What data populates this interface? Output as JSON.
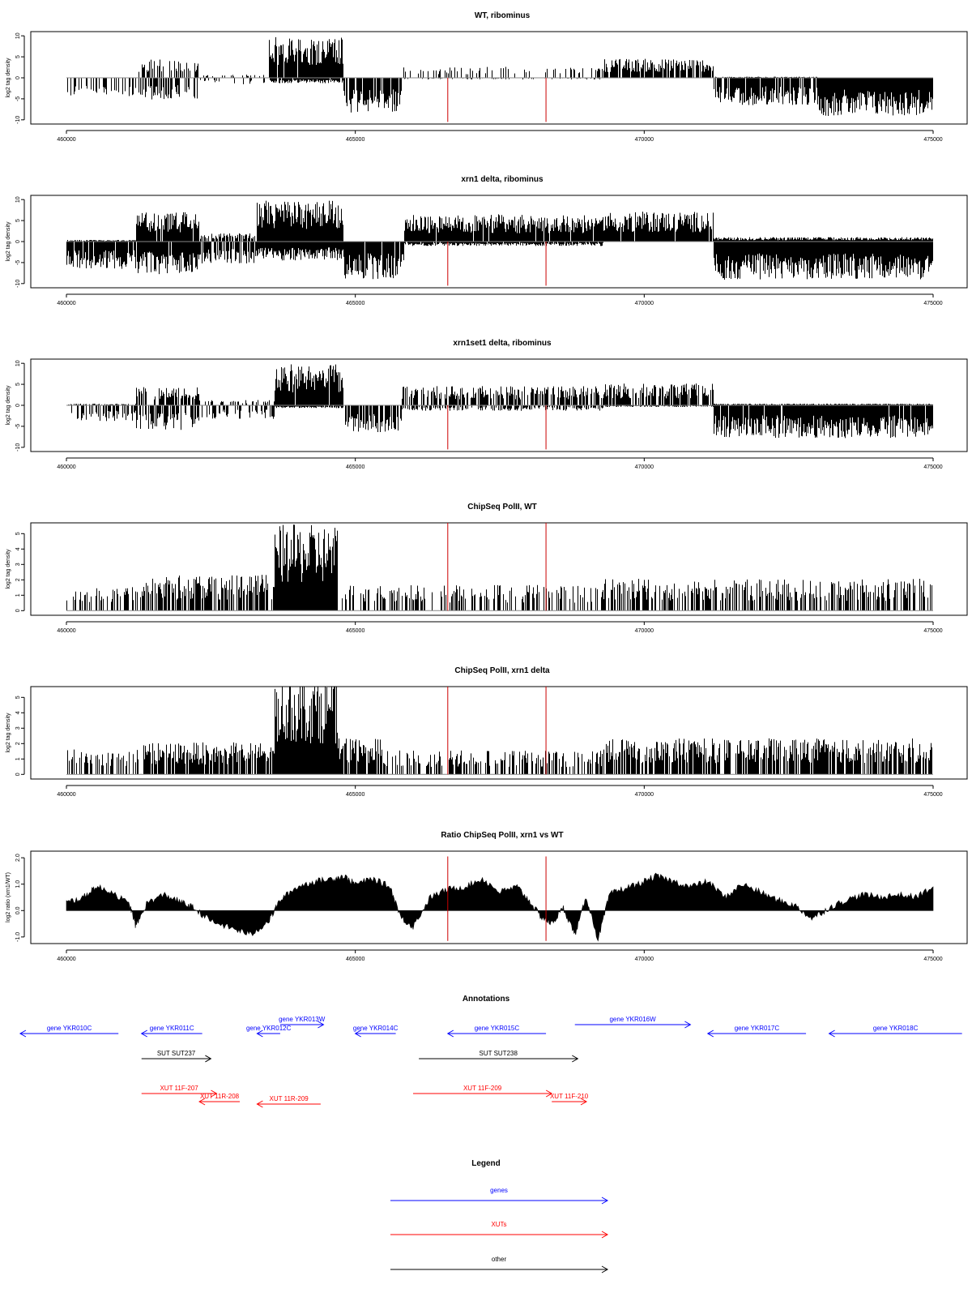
{
  "chart_data": [
    {
      "type": "bar",
      "title": "WT, ribominus",
      "ylabel": "log2 tag density",
      "xlim": [
        460000,
        475000
      ],
      "ylim": [
        -11,
        11
      ],
      "yticks": [
        10,
        5,
        0,
        -5,
        -10
      ],
      "xticks": [
        460000,
        465000,
        470000,
        475000
      ],
      "xtick_labels": [
        "460000",
        "465000",
        "470000",
        "475000"
      ],
      "vlines": [
        466600,
        468300
      ],
      "vline_range": [
        -10.5,
        0
      ],
      "segments": [
        {
          "from": 460000,
          "to": 461200,
          "plus": 0.0,
          "minus": -3.5,
          "density": 0.35
        },
        {
          "from": 461200,
          "to": 462300,
          "plus": 3.5,
          "minus": -4.0,
          "density": 0.55
        },
        {
          "from": 462300,
          "to": 463500,
          "plus": 0.6,
          "minus": -1.2,
          "density": 0.15
        },
        {
          "from": 463500,
          "to": 464800,
          "plus": 7.5,
          "minus": -1.0,
          "density": 0.95
        },
        {
          "from": 464800,
          "to": 465800,
          "plus": 0.0,
          "minus": -6.5,
          "density": 0.85
        },
        {
          "from": 465800,
          "to": 469300,
          "plus": 2.0,
          "minus": -0.3,
          "density": 0.2
        },
        {
          "from": 469300,
          "to": 471200,
          "plus": 3.5,
          "minus": 0.0,
          "density": 0.8
        },
        {
          "from": 471200,
          "to": 473000,
          "plus": 0.2,
          "minus": -5.0,
          "density": 0.8
        },
        {
          "from": 473000,
          "to": 475000,
          "plus": 0.0,
          "minus": -7.0,
          "density": 1.0
        }
      ]
    },
    {
      "type": "bar",
      "title": "xrn1 delta, ribominus",
      "ylabel": "log2 tag density",
      "xlim": [
        460000,
        475000
      ],
      "ylim": [
        -11,
        11
      ],
      "yticks": [
        10,
        5,
        0,
        -5,
        -10
      ],
      "xticks": [
        460000,
        465000,
        470000,
        475000
      ],
      "xtick_labels": [
        "460000",
        "465000",
        "470000",
        "475000"
      ],
      "vlines": [
        466600,
        468300
      ],
      "vline_range": [
        -10.5,
        0
      ],
      "segments": [
        {
          "from": 460000,
          "to": 461200,
          "plus": 0.3,
          "minus": -5.0,
          "density": 0.9
        },
        {
          "from": 461200,
          "to": 462300,
          "plus": 5.5,
          "minus": -6.0,
          "density": 0.95
        },
        {
          "from": 462300,
          "to": 463300,
          "plus": 1.5,
          "minus": -4.0,
          "density": 0.7
        },
        {
          "from": 463300,
          "to": 464800,
          "plus": 7.5,
          "minus": -3.5,
          "density": 1.0
        },
        {
          "from": 464800,
          "to": 465850,
          "plus": 0.0,
          "minus": -7.0,
          "density": 0.95
        },
        {
          "from": 465850,
          "to": 469300,
          "plus": 5.0,
          "minus": -0.8,
          "density": 0.95
        },
        {
          "from": 469300,
          "to": 471200,
          "plus": 5.5,
          "minus": 0.0,
          "density": 0.95
        },
        {
          "from": 471200,
          "to": 475000,
          "plus": 0.8,
          "minus": -7.0,
          "density": 1.0
        }
      ]
    },
    {
      "type": "bar",
      "title": "xrn1set1 delta, ribominus",
      "ylabel": "log2 tag density",
      "xlim": [
        460000,
        475000
      ],
      "ylim": [
        -11,
        11
      ],
      "yticks": [
        10,
        5,
        0,
        -5,
        -10
      ],
      "xticks": [
        460000,
        465000,
        470000,
        475000
      ],
      "xtick_labels": [
        "460000",
        "465000",
        "470000",
        "475000"
      ],
      "vlines": [
        466600,
        468300
      ],
      "vline_range": [
        -10.5,
        0
      ],
      "segments": [
        {
          "from": 460000,
          "to": 461200,
          "plus": 0.3,
          "minus": -3.0,
          "density": 0.45
        },
        {
          "from": 461200,
          "to": 462300,
          "plus": 3.5,
          "minus": -4.5,
          "density": 0.6
        },
        {
          "from": 462300,
          "to": 463600,
          "plus": 1.0,
          "minus": -2.5,
          "density": 0.35
        },
        {
          "from": 463600,
          "to": 464800,
          "plus": 7.5,
          "minus": -0.5,
          "density": 0.95
        },
        {
          "from": 464800,
          "to": 465800,
          "plus": 0.0,
          "minus": -5.0,
          "density": 0.75
        },
        {
          "from": 465800,
          "to": 469300,
          "plus": 3.5,
          "minus": -1.0,
          "density": 0.6
        },
        {
          "from": 469300,
          "to": 471200,
          "plus": 4.0,
          "minus": -0.3,
          "density": 0.75
        },
        {
          "from": 471200,
          "to": 475000,
          "plus": 0.3,
          "minus": -6.0,
          "density": 0.95
        }
      ]
    },
    {
      "type": "bar",
      "title": "ChipSeq PolII, WT",
      "ylabel": "log2 tag density",
      "xlim": [
        460000,
        475000
      ],
      "ylim": [
        -0.3,
        5.7
      ],
      "yticks": [
        0,
        1,
        2,
        3,
        4,
        5
      ],
      "xticks": [
        460000,
        465000,
        470000,
        475000
      ],
      "xtick_labels": [
        "460000",
        "465000",
        "470000",
        "475000"
      ],
      "vlines": [
        466600,
        468300
      ],
      "vline_range": [
        0,
        5.7
      ],
      "segments": [
        {
          "from": 460000,
          "to": 461300,
          "plus": 1.2,
          "minus": 0,
          "density": 0.3
        },
        {
          "from": 461300,
          "to": 463600,
          "plus": 1.8,
          "minus": 0,
          "density": 0.7
        },
        {
          "from": 463600,
          "to": 464700,
          "plus": 4.3,
          "minus": 0,
          "density": 1.0
        },
        {
          "from": 464700,
          "to": 469300,
          "plus": 1.3,
          "minus": 0,
          "density": 0.35
        },
        {
          "from": 469300,
          "to": 475000,
          "plus": 1.6,
          "minus": 0,
          "density": 0.55
        }
      ]
    },
    {
      "type": "bar",
      "title": "ChipSeq PolII, xrn1 delta",
      "ylabel": "log2 tag density",
      "xlim": [
        460000,
        475000
      ],
      "ylim": [
        -0.3,
        5.7
      ],
      "yticks": [
        0,
        1,
        2,
        3,
        4,
        5
      ],
      "xticks": [
        460000,
        465000,
        470000,
        475000
      ],
      "xtick_labels": [
        "460000",
        "465000",
        "470000",
        "475000"
      ],
      "vlines": [
        466600,
        468300
      ],
      "vline_range": [
        0,
        5.7
      ],
      "segments": [
        {
          "from": 460000,
          "to": 461300,
          "plus": 1.3,
          "minus": 0,
          "density": 0.45
        },
        {
          "from": 461300,
          "to": 463600,
          "plus": 1.6,
          "minus": 0,
          "density": 0.8
        },
        {
          "from": 463600,
          "to": 464700,
          "plus": 5.0,
          "minus": 0,
          "density": 1.0
        },
        {
          "from": 464700,
          "to": 465500,
          "plus": 1.8,
          "minus": 0,
          "density": 0.9
        },
        {
          "from": 465500,
          "to": 469300,
          "plus": 1.2,
          "minus": 0,
          "density": 0.5
        },
        {
          "from": 469300,
          "to": 475000,
          "plus": 1.8,
          "minus": 0,
          "density": 0.75
        }
      ]
    },
    {
      "type": "area",
      "title": "Ratio ChipSeq PolII, xrn1 vs WT",
      "ylabel": "log2 ratio (xrn1/WT)",
      "xlim": [
        460000,
        475000
      ],
      "ylim": [
        -1.25,
        2.25
      ],
      "yticks": [
        2.0,
        1.0,
        0.0,
        -1.0
      ],
      "ytick_labels": [
        "2.0",
        "1.0",
        "0.0",
        "-1.0"
      ],
      "xticks": [
        460000,
        465000,
        470000,
        475000
      ],
      "xtick_labels": [
        "460000",
        "465000",
        "470000",
        "475000"
      ],
      "vlines": [
        466600,
        468300
      ],
      "vline_range": [
        -1.15,
        2.05
      ],
      "x": [
        460000,
        460300,
        460500,
        460800,
        461100,
        461200,
        461400,
        461700,
        462000,
        462200,
        462500,
        462900,
        463200,
        463500,
        463700,
        464000,
        464300,
        464600,
        464800,
        465000,
        465300,
        465600,
        465800,
        466000,
        466300,
        466600,
        466900,
        467200,
        467500,
        467800,
        468000,
        468200,
        468400,
        468600,
        468800,
        469000,
        469200,
        469400,
        469600,
        469900,
        470200,
        470500,
        470800,
        471100,
        471400,
        471700,
        472000,
        472300,
        472600,
        472900,
        473200,
        473500,
        473800,
        474100,
        474400,
        474700,
        475000
      ],
      "y": [
        0.3,
        0.5,
        0.9,
        0.7,
        0.2,
        -0.6,
        0.3,
        0.6,
        0.3,
        0.1,
        -0.4,
        -0.7,
        -0.9,
        -0.4,
        0.4,
        0.9,
        1.1,
        1.2,
        1.3,
        1.0,
        1.2,
        0.9,
        -0.3,
        -0.6,
        0.5,
        0.8,
        0.9,
        1.2,
        0.7,
        0.9,
        0.4,
        -0.2,
        -0.5,
        0.1,
        -0.9,
        0.5,
        -1.1,
        0.6,
        0.8,
        1.0,
        1.3,
        1.1,
        0.9,
        1.1,
        0.5,
        1.0,
        0.7,
        0.4,
        0.2,
        -0.3,
        0.1,
        0.4,
        0.6,
        0.5,
        0.6,
        0.5,
        0.9
      ]
    }
  ],
  "annotations": {
    "title": "Annotations",
    "items": [
      {
        "label": "gene YKR010C",
        "color": "#0000ff",
        "from": 459200,
        "to": 460900,
        "dir": "left",
        "lane": 1
      },
      {
        "label": "gene YKR011C",
        "color": "#0000ff",
        "from": 461300,
        "to": 462350,
        "dir": "left",
        "lane": 1
      },
      {
        "label": "gene YKR012C",
        "color": "#0000ff",
        "from": 463300,
        "to": 463700,
        "dir": "left",
        "lane": 1
      },
      {
        "label": "gene YKR013W",
        "color": "#0000ff",
        "from": 463700,
        "to": 464450,
        "dir": "right",
        "lane": 0
      },
      {
        "label": "gene YKR014C",
        "color": "#0000ff",
        "from": 465000,
        "to": 465700,
        "dir": "left",
        "lane": 1
      },
      {
        "label": "gene YKR015C",
        "color": "#0000ff",
        "from": 466600,
        "to": 468300,
        "dir": "left",
        "lane": 1
      },
      {
        "label": "gene YKR016W",
        "color": "#0000ff",
        "from": 468800,
        "to": 470800,
        "dir": "right",
        "lane": 0
      },
      {
        "label": "gene YKR017C",
        "color": "#0000ff",
        "from": 471100,
        "to": 472800,
        "dir": "left",
        "lane": 1
      },
      {
        "label": "gene YKR018C",
        "color": "#0000ff",
        "from": 473200,
        "to": 475500,
        "dir": "left",
        "lane": 1
      },
      {
        "label": "SUT SUT237",
        "color": "#000000",
        "from": 461300,
        "to": 462500,
        "dir": "right",
        "lane": 2
      },
      {
        "label": "SUT SUT238",
        "color": "#000000",
        "from": 466100,
        "to": 468850,
        "dir": "right",
        "lane": 2
      },
      {
        "label": "XUT 11F-207",
        "color": "#ff0000",
        "from": 461300,
        "to": 462600,
        "dir": "right",
        "lane": 3
      },
      {
        "label": "XUT 11R-208",
        "color": "#ff0000",
        "from": 462300,
        "to": 463000,
        "dir": "left",
        "lane": 4
      },
      {
        "label": "XUT 11R-209",
        "color": "#ff0000",
        "from": 463300,
        "to": 464400,
        "dir": "left",
        "lane": 5
      },
      {
        "label": "XUT 11F-209",
        "color": "#ff0000",
        "from": 466000,
        "to": 468400,
        "dir": "right",
        "lane": 3
      },
      {
        "label": "XUT 11F-210",
        "color": "#ff0000",
        "from": 468400,
        "to": 469000,
        "dir": "right",
        "lane": 4
      }
    ]
  },
  "legend": {
    "title": "Legend",
    "items": [
      {
        "label": "genes",
        "color": "#0000ff"
      },
      {
        "label": "XUTs",
        "color": "#ff0000"
      },
      {
        "label": "other",
        "color": "#000000"
      }
    ]
  }
}
